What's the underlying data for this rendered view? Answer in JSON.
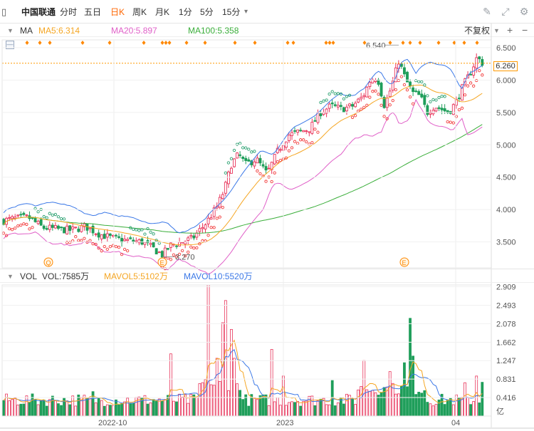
{
  "toolbar": {
    "stock_name": "中国联通",
    "periods": [
      "分时",
      "五日",
      "日K",
      "周K",
      "月K",
      "1分",
      "5分",
      "15分"
    ],
    "active_period": "日K",
    "more_caret": "▾"
  },
  "ma_row": {
    "title": "MA",
    "ma5": "MA5:6.314",
    "ma20": "MA20:5.897",
    "ma100": "MA100:5.358",
    "adjust": "不复权",
    "plus": "+",
    "minus": "−"
  },
  "vol_row": {
    "title": "VOL",
    "vol": "VOL:7585万",
    "mavol5": "MAVOL5:5102万",
    "mavol10": "MAVOL10:5520万"
  },
  "colors": {
    "up": "#e8335a",
    "down": "#1f9e5a",
    "ma5": "#f5a623",
    "ma20": "#e060c8",
    "ma100": "#3aae3a",
    "boll_up": "#3b78e7",
    "sar_up": "#2aa070",
    "sar_down": "#f23a3a",
    "current": "#ff9900",
    "event": "#ff8800"
  },
  "chart_data": [
    {
      "type": "candlestick",
      "title": "",
      "ylim": [
        3.1,
        6.62
      ],
      "y_ticks": [
        "6.500",
        "6.000",
        "5.500",
        "5.000",
        "4.500",
        "4.000",
        "3.500"
      ],
      "current_price": "6.260",
      "high_annotation": "6.540",
      "low_annotation": "3.270",
      "x_ticks": [
        "2022-10",
        "2023",
        "04"
      ],
      "event_markers": [
        "Q",
        "E",
        "E"
      ],
      "series": [
        {
          "name": "MA5",
          "value": "6.314"
        },
        {
          "name": "MA20",
          "value": "5.897"
        },
        {
          "name": "MA100",
          "value": "5.358"
        }
      ],
      "close_profile": [
        [
          0,
          3.82
        ],
        [
          20,
          3.86
        ],
        [
          40,
          3.88
        ],
        [
          60,
          3.72
        ],
        [
          80,
          3.7
        ],
        [
          100,
          3.68
        ],
        [
          120,
          3.74
        ],
        [
          140,
          3.62
        ],
        [
          160,
          3.55
        ],
        [
          180,
          3.52
        ],
        [
          200,
          3.5
        ],
        [
          215,
          3.4
        ],
        [
          228,
          3.3
        ],
        [
          240,
          3.45
        ],
        [
          255,
          3.5
        ],
        [
          270,
          3.55
        ],
        [
          290,
          3.8
        ],
        [
          305,
          4.05
        ],
        [
          315,
          4.3
        ],
        [
          325,
          4.7
        ],
        [
          335,
          4.85
        ],
        [
          345,
          4.7
        ],
        [
          360,
          4.78
        ],
        [
          375,
          4.55
        ],
        [
          390,
          4.9
        ],
        [
          405,
          5.15
        ],
        [
          420,
          5.2
        ],
        [
          435,
          5.25
        ],
        [
          450,
          5.5
        ],
        [
          465,
          5.6
        ],
        [
          480,
          5.55
        ],
        [
          495,
          5.6
        ],
        [
          510,
          5.75
        ],
        [
          520,
          6.0
        ],
        [
          530,
          6.05
        ],
        [
          540,
          5.6
        ],
        [
          550,
          5.9
        ],
        [
          560,
          6.3
        ],
        [
          570,
          6.0
        ],
        [
          580,
          5.8
        ],
        [
          590,
          5.75
        ],
        [
          600,
          5.5
        ],
        [
          610,
          5.6
        ],
        [
          620,
          5.55
        ],
        [
          630,
          5.5
        ],
        [
          640,
          5.65
        ],
        [
          650,
          5.9
        ],
        [
          660,
          6.1
        ],
        [
          670,
          6.35
        ],
        [
          678,
          6.26
        ]
      ]
    },
    {
      "type": "bar",
      "title": "",
      "unit": "亿",
      "ylim": [
        0,
        2.95
      ],
      "y_ticks": [
        "2.909",
        "2.493",
        "2.078",
        "1.662",
        "1.247",
        "0.831",
        "0.416"
      ],
      "series": [
        {
          "name": "VOL",
          "value": "7585万"
        },
        {
          "name": "MAVOL5",
          "value": "5102万"
        },
        {
          "name": "MAVOL10",
          "value": "5520万"
        }
      ],
      "spikes": [
        [
          130,
          0.55
        ],
        [
          240,
          1.4
        ],
        [
          291,
          2.95
        ],
        [
          306,
          1.3
        ],
        [
          312,
          2.1
        ],
        [
          318,
          2.6
        ],
        [
          324,
          1.95
        ],
        [
          330,
          1.3
        ],
        [
          382,
          1.5
        ],
        [
          398,
          0.9
        ],
        [
          468,
          0.8
        ],
        [
          512,
          1.25
        ],
        [
          548,
          1.0
        ],
        [
          568,
          1.2
        ],
        [
          578,
          2.2
        ],
        [
          582,
          1.35
        ],
        [
          652,
          0.75
        ],
        [
          668,
          0.9
        ],
        [
          678,
          0.76
        ]
      ]
    }
  ]
}
